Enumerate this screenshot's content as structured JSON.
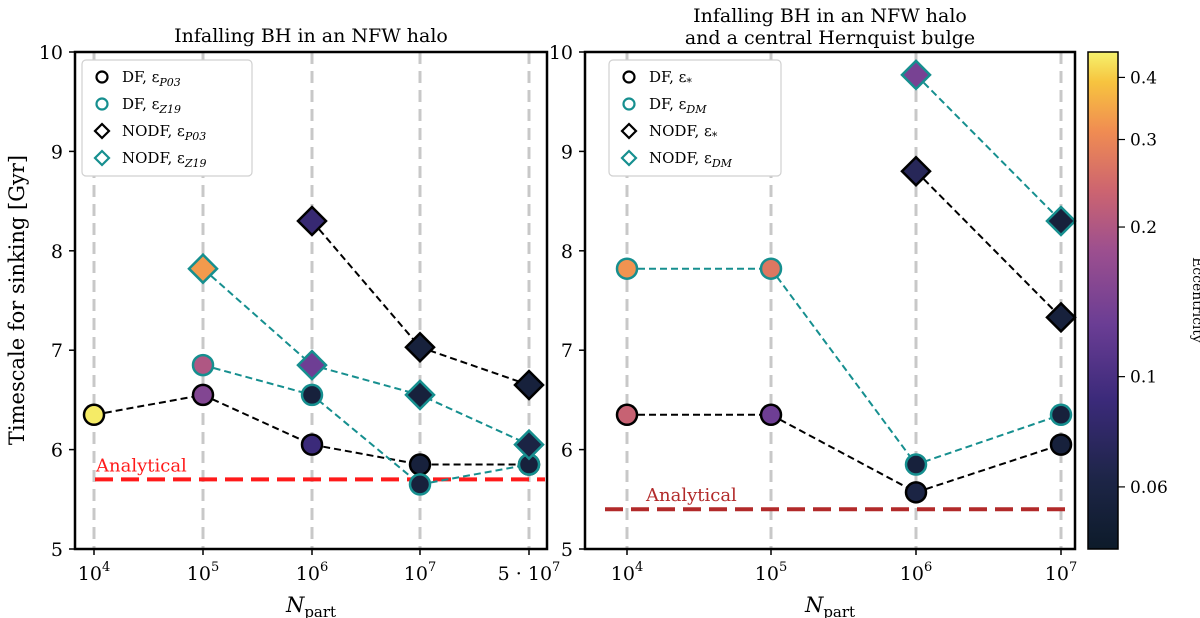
{
  "figure": {
    "ylabel": "Timescale for sinking [Gyr]",
    "colorbar": {
      "label": "Eccentricity",
      "ticks": [
        0.06,
        0.1,
        0.2,
        0.3,
        0.4
      ],
      "tick_labels": [
        "0.06",
        "0.1",
        "0.2",
        "0.3",
        "0.4"
      ],
      "range": [
        0.045,
        0.45
      ],
      "scale": "log",
      "colormap": "plasma"
    }
  },
  "chart_data": [
    {
      "type": "scatter",
      "title": "Infalling BH in an NFW halo",
      "xlabel": "N_part",
      "xlabel_main": "N",
      "xlabel_sub": "part",
      "ylabel": "Timescale for sinking [Gyr]",
      "ylim": [
        5,
        10
      ],
      "yticks": [
        "5",
        "6",
        "7",
        "8",
        "9",
        "10"
      ],
      "categories": [
        "10^4",
        "10^5",
        "10^6",
        "10^7",
        "5·10^7"
      ],
      "xtick_labels": [
        {
          "base": "10",
          "exp": "4"
        },
        {
          "base": "10",
          "exp": "5"
        },
        {
          "base": "10",
          "exp": "6"
        },
        {
          "base": "10",
          "exp": "7"
        },
        {
          "base": "5 · 10",
          "exp": "7"
        }
      ],
      "analytical": {
        "value": 5.7,
        "label": "Analytical",
        "color": "#ff1a1a"
      },
      "series": [
        {
          "name": "DF, ε_P03",
          "legend_main": "DF, ε",
          "legend_sub": "P03",
          "marker": "circle",
          "edge": "#000000",
          "x": [
            0,
            1,
            2,
            3,
            4
          ],
          "values": [
            6.35,
            6.55,
            6.05,
            5.85,
            5.85
          ],
          "ecc": [
            0.44,
            0.15,
            0.09,
            0.055,
            0.055
          ]
        },
        {
          "name": "DF, ε_Z19",
          "legend_main": "DF, ε",
          "legend_sub": "Z19",
          "marker": "circle",
          "edge": "#168f8f",
          "x": [
            1,
            2,
            3,
            4
          ],
          "values": [
            6.85,
            6.55,
            5.65,
            5.85
          ],
          "ecc": [
            0.2,
            0.055,
            0.055,
            0.055
          ]
        },
        {
          "name": "NODF, ε_P03",
          "legend_main": "NODF, ε",
          "legend_sub": "P03",
          "marker": "diamond",
          "edge": "#000000",
          "x": [
            2,
            3,
            4
          ],
          "values": [
            8.3,
            7.03,
            6.65
          ],
          "ecc": [
            0.085,
            0.055,
            0.055
          ]
        },
        {
          "name": "NODF, ε_Z19",
          "legend_main": "NODF, ε",
          "legend_sub": "Z19",
          "marker": "diamond",
          "edge": "#168f8f",
          "x": [
            1,
            2,
            3,
            4
          ],
          "values": [
            7.82,
            6.85,
            6.55,
            6.05
          ],
          "ecc": [
            0.33,
            0.13,
            0.055,
            0.06
          ]
        }
      ]
    },
    {
      "type": "scatter",
      "title": "Infalling BH in an NFW halo",
      "title_line2": "and a central Hernquist bulge",
      "xlabel": "N_part",
      "xlabel_main": "N",
      "xlabel_sub": "part",
      "ylim": [
        5,
        10
      ],
      "yticks": [
        "5",
        "6",
        "7",
        "8",
        "9",
        "10"
      ],
      "categories": [
        "10^4",
        "10^5",
        "10^6",
        "10^7"
      ],
      "xtick_labels": [
        {
          "base": "10",
          "exp": "4"
        },
        {
          "base": "10",
          "exp": "5"
        },
        {
          "base": "10",
          "exp": "6"
        },
        {
          "base": "10",
          "exp": "7"
        }
      ],
      "analytical": {
        "value": 5.4,
        "label": "Analytical",
        "color": "#b22a2a"
      },
      "series": [
        {
          "name": "DF, ε_*",
          "legend_main": "DF, ε",
          "legend_sub": "*",
          "marker": "circle",
          "edge": "#000000",
          "x": [
            0,
            1,
            2,
            3
          ],
          "values": [
            6.35,
            6.35,
            5.57,
            6.05
          ],
          "ecc": [
            0.23,
            0.13,
            0.06,
            0.055
          ]
        },
        {
          "name": "DF, ε_DM",
          "legend_main": "DF, ε",
          "legend_sub": "DM",
          "marker": "circle",
          "edge": "#168f8f",
          "x": [
            0,
            1,
            2,
            3
          ],
          "values": [
            7.82,
            7.82,
            5.85,
            6.35
          ],
          "ecc": [
            0.32,
            0.27,
            0.055,
            0.055
          ]
        },
        {
          "name": "NODF, ε_*",
          "legend_main": "NODF, ε",
          "legend_sub": "*",
          "marker": "diamond",
          "edge": "#000000",
          "x": [
            2,
            3
          ],
          "values": [
            8.8,
            7.33
          ],
          "ecc": [
            0.07,
            0.055
          ]
        },
        {
          "name": "NODF, ε_DM",
          "legend_main": "NODF, ε",
          "legend_sub": "DM",
          "marker": "diamond",
          "edge": "#168f8f",
          "x": [
            2,
            3
          ],
          "values": [
            9.77,
            8.3
          ],
          "ecc": [
            0.14,
            0.055
          ]
        }
      ]
    }
  ]
}
